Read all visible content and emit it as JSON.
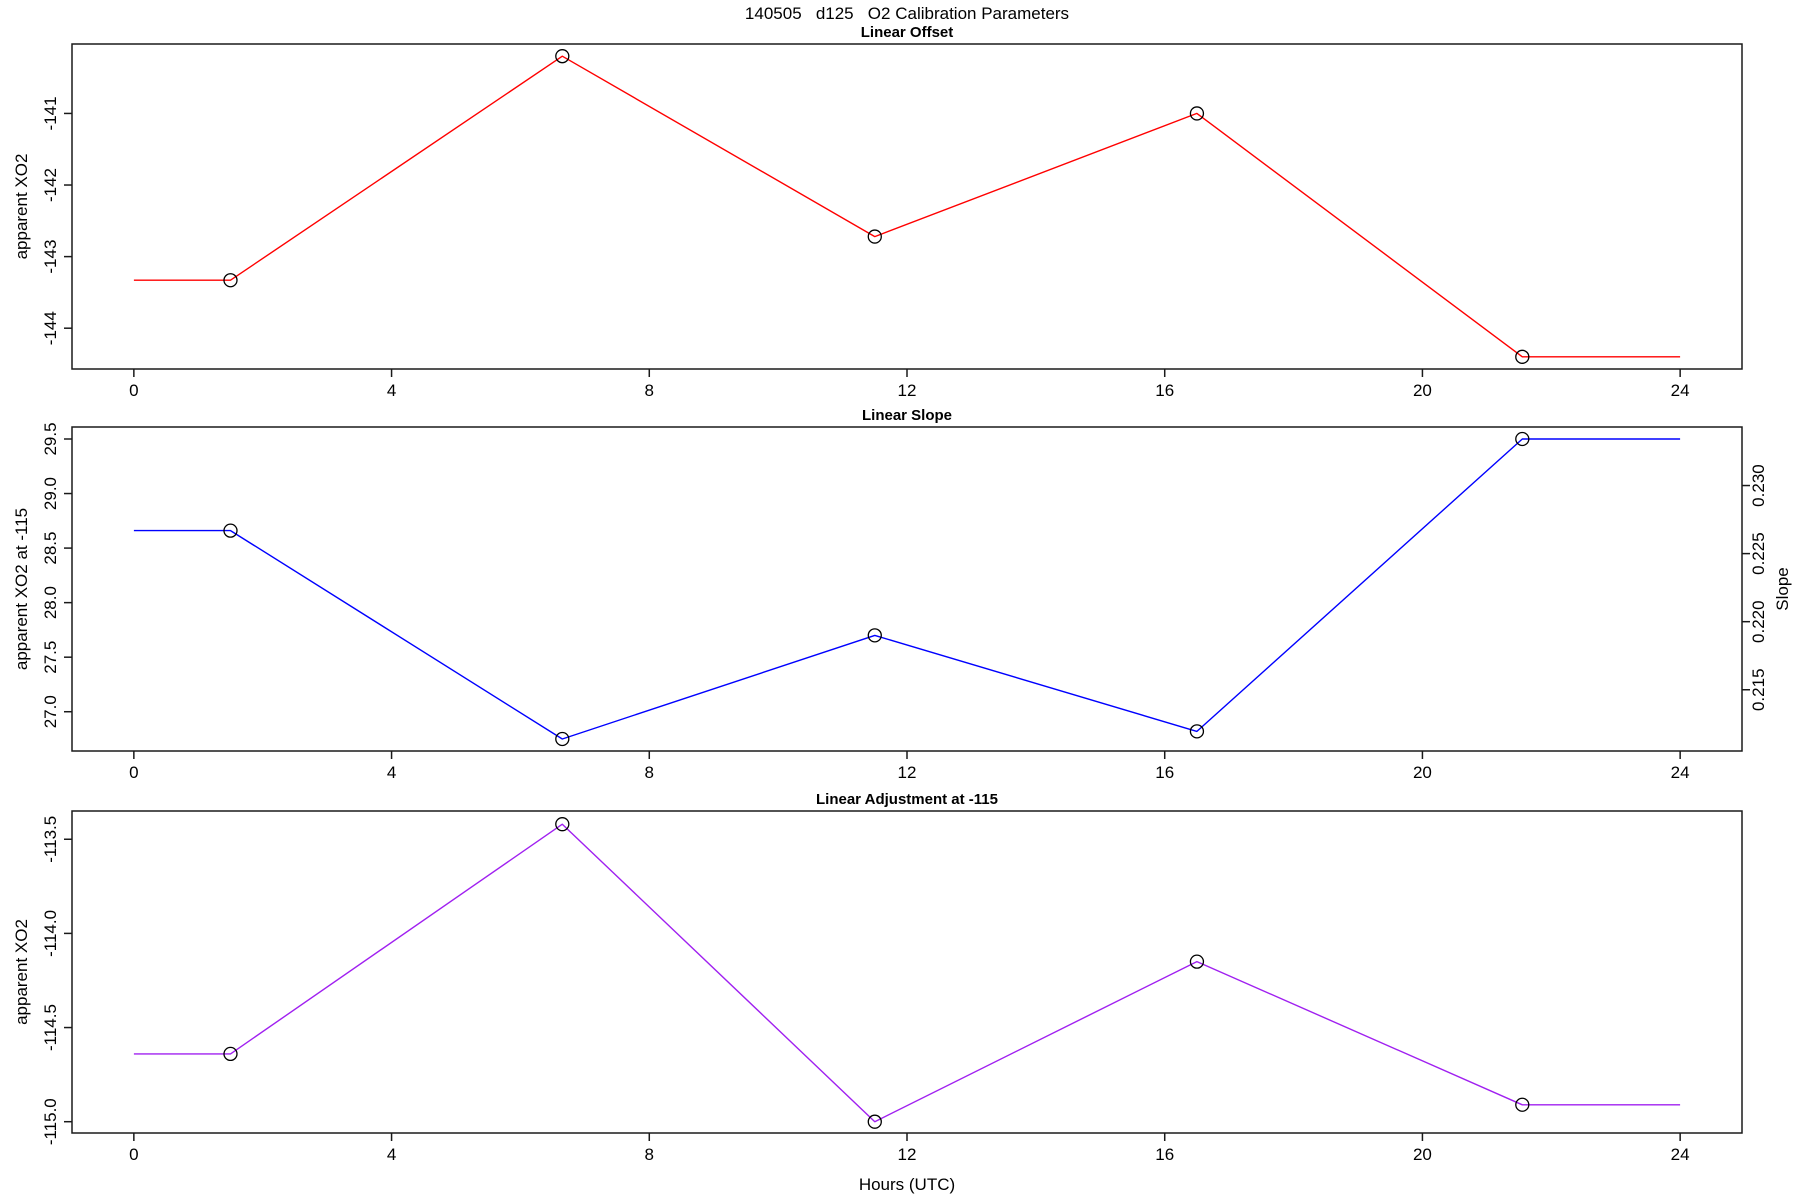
{
  "title": "140505   d125   O2 Calibration Parameters",
  "x_axis": {
    "label": "Hours (UTC)",
    "tick_values": [
      0,
      4,
      8,
      12,
      16,
      20,
      24
    ],
    "tick_labels": [
      "0",
      "4",
      "8",
      "12",
      "16",
      "20",
      "24"
    ],
    "xlim": [
      -0.96,
      24.96
    ]
  },
  "chart_data": [
    {
      "type": "line",
      "title": "Linear Offset",
      "ylabel": "apparent XO2",
      "xlabel": "",
      "color": "#ff0000",
      "marker": "open-circle",
      "grid": false,
      "x": [
        0,
        1.5,
        6.65,
        11.5,
        16.5,
        21.55,
        24
      ],
      "y": [
        -143.33,
        -143.33,
        -140.2,
        -142.72,
        -141.0,
        -144.4,
        -144.4
      ],
      "marker_point_indices": [
        1,
        2,
        3,
        4,
        5
      ],
      "y_tick_values": [
        -141,
        -142,
        -143,
        -144
      ],
      "y_tick_labels": [
        "-141",
        "-142",
        "-143",
        "-144"
      ],
      "ylim": [
        -144.57,
        -140.03
      ]
    },
    {
      "type": "line",
      "title": "Linear Slope",
      "ylabel": "apparent XO2 at -115",
      "ylabel_right": "Slope",
      "xlabel": "",
      "color": "#0000ff",
      "marker": "open-circle",
      "grid": false,
      "x": [
        0,
        1.5,
        6.65,
        11.5,
        16.5,
        21.55,
        24
      ],
      "y": [
        28.66,
        28.66,
        26.75,
        27.7,
        26.82,
        29.5,
        29.5
      ],
      "marker_point_indices": [
        1,
        2,
        3,
        4,
        5
      ],
      "y_tick_values": [
        29.5,
        29.0,
        28.5,
        28.0,
        27.5,
        27.0
      ],
      "y_tick_labels": [
        "29.5",
        "29.0",
        "28.5",
        "28.0",
        "27.5",
        "27.0"
      ],
      "ylim": [
        26.64,
        29.61
      ],
      "y_tick_values_right": [
        0.23,
        0.225,
        0.22,
        0.215
      ],
      "y_tick_labels_right": [
        "0.230",
        "0.225",
        "0.220",
        "0.215"
      ],
      "ylim_right": [
        0.2105,
        0.2343
      ]
    },
    {
      "type": "line",
      "title": "Linear Adjustment at -115",
      "ylabel": "apparent XO2",
      "xlabel": "Hours (UTC)",
      "color": "#a020f0",
      "marker": "open-circle",
      "grid": false,
      "x": [
        0,
        1.5,
        6.65,
        11.5,
        16.5,
        21.55,
        24
      ],
      "y": [
        -114.64,
        -114.64,
        -113.42,
        -115.0,
        -114.15,
        -114.91,
        -114.91
      ],
      "marker_point_indices": [
        1,
        2,
        3,
        4,
        5
      ],
      "y_tick_values": [
        -113.5,
        -114.0,
        -114.5,
        -115.0
      ],
      "y_tick_labels": [
        "-113.5",
        "-114.0",
        "-114.5",
        "-115.0"
      ],
      "ylim": [
        -115.06,
        -113.35
      ]
    }
  ]
}
